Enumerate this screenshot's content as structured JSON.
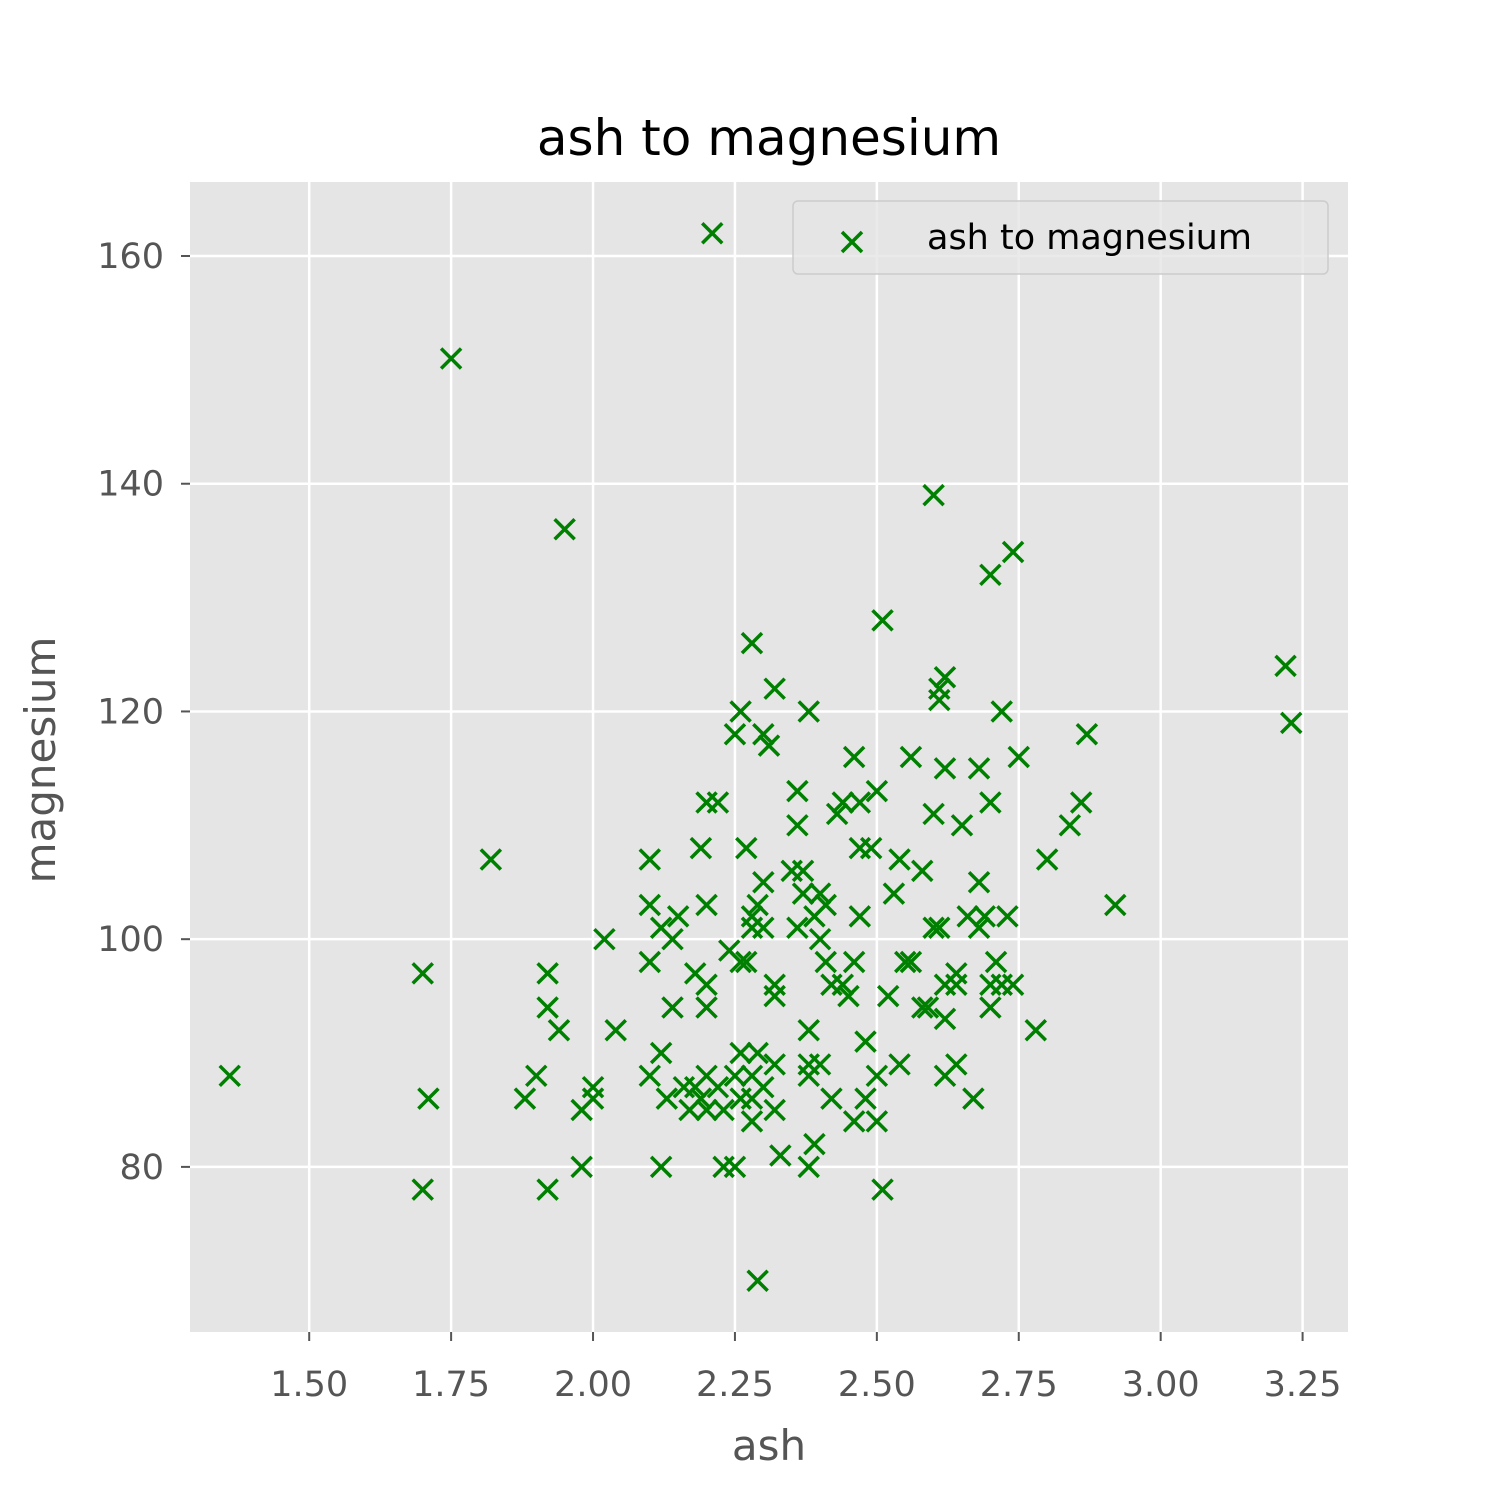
{
  "chart_data": {
    "type": "scatter",
    "title": "ash to magnesium",
    "xlabel": "ash",
    "ylabel": "magnesium",
    "xlim": [
      1.29,
      3.33
    ],
    "ylim": [
      65.5,
      166.5
    ],
    "x_ticks": [
      1.5,
      1.75,
      2.0,
      2.25,
      2.5,
      2.75,
      3.0,
      3.25
    ],
    "x_tick_labels": [
      "1.50",
      "1.75",
      "2.00",
      "2.25",
      "2.50",
      "2.75",
      "3.00",
      "3.25"
    ],
    "y_ticks": [
      80,
      100,
      120,
      140,
      160
    ],
    "y_tick_labels": [
      "80",
      "100",
      "120",
      "140",
      "160"
    ],
    "grid": true,
    "legend": {
      "position": "top-right",
      "entries": [
        "ash to magnesium"
      ]
    },
    "series": [
      {
        "name": "ash to magnesium",
        "color": "#008000",
        "marker": "x",
        "points": [
          [
            1.36,
            88
          ],
          [
            1.7,
            97
          ],
          [
            1.71,
            86
          ],
          [
            1.7,
            78
          ],
          [
            1.75,
            151
          ],
          [
            1.82,
            107
          ],
          [
            1.88,
            86
          ],
          [
            1.9,
            88
          ],
          [
            1.92,
            97
          ],
          [
            1.92,
            94
          ],
          [
            1.94,
            92
          ],
          [
            1.92,
            78
          ],
          [
            1.95,
            136
          ],
          [
            1.98,
            85
          ],
          [
            1.98,
            80
          ],
          [
            2.0,
            87
          ],
          [
            2.0,
            86
          ],
          [
            2.02,
            100
          ],
          [
            2.04,
            92
          ],
          [
            2.1,
            107
          ],
          [
            2.1,
            103
          ],
          [
            2.1,
            98
          ],
          [
            2.12,
            101
          ],
          [
            2.14,
            100
          ],
          [
            2.15,
            102
          ],
          [
            2.14,
            94
          ],
          [
            2.1,
            88
          ],
          [
            2.12,
            90
          ],
          [
            2.13,
            86
          ],
          [
            2.12,
            80
          ],
          [
            2.16,
            87
          ],
          [
            2.17,
            85
          ],
          [
            2.18,
            97
          ],
          [
            2.18,
            87
          ],
          [
            2.19,
            86
          ],
          [
            2.2,
            88
          ],
          [
            2.2,
            85
          ],
          [
            2.19,
            108
          ],
          [
            2.2,
            103
          ],
          [
            2.2,
            96
          ],
          [
            2.2,
            94
          ],
          [
            2.2,
            112
          ],
          [
            2.22,
            112
          ],
          [
            2.21,
            162
          ],
          [
            2.22,
            87
          ],
          [
            2.23,
            85
          ],
          [
            2.23,
            80
          ],
          [
            2.24,
            99
          ],
          [
            2.25,
            118
          ],
          [
            2.26,
            120
          ],
          [
            2.26,
            98
          ],
          [
            2.26,
            90
          ],
          [
            2.25,
            88
          ],
          [
            2.26,
            86
          ],
          [
            2.25,
            80
          ],
          [
            2.28,
            126
          ],
          [
            2.27,
            108
          ],
          [
            2.28,
            102
          ],
          [
            2.28,
            101
          ],
          [
            2.27,
            98
          ],
          [
            2.28,
            88
          ],
          [
            2.28,
            86
          ],
          [
            2.28,
            84
          ],
          [
            2.3,
            118
          ],
          [
            2.31,
            117
          ],
          [
            2.3,
            105
          ],
          [
            2.3,
            101
          ],
          [
            2.29,
            103
          ],
          [
            2.29,
            90
          ],
          [
            2.3,
            87
          ],
          [
            2.29,
            70
          ],
          [
            2.32,
            122
          ],
          [
            2.32,
            96
          ],
          [
            2.32,
            95
          ],
          [
            2.32,
            89
          ],
          [
            2.32,
            85
          ],
          [
            2.33,
            81
          ],
          [
            2.35,
            106
          ],
          [
            2.36,
            113
          ],
          [
            2.36,
            110
          ],
          [
            2.37,
            106
          ],
          [
            2.36,
            101
          ],
          [
            2.37,
            104
          ],
          [
            2.38,
            120
          ],
          [
            2.38,
            92
          ],
          [
            2.38,
            89
          ],
          [
            2.38,
            88
          ],
          [
            2.39,
            102
          ],
          [
            2.38,
            80
          ],
          [
            2.39,
            82
          ],
          [
            2.4,
            104
          ],
          [
            2.4,
            100
          ],
          [
            2.41,
            98
          ],
          [
            2.4,
            89
          ],
          [
            2.41,
            103
          ],
          [
            2.42,
            96
          ],
          [
            2.42,
            86
          ],
          [
            2.43,
            111
          ],
          [
            2.44,
            112
          ],
          [
            2.45,
            95
          ],
          [
            2.44,
            96
          ],
          [
            2.46,
            98
          ],
          [
            2.46,
            116
          ],
          [
            2.46,
            84
          ],
          [
            2.47,
            112
          ],
          [
            2.47,
            108
          ],
          [
            2.47,
            102
          ],
          [
            2.48,
            91
          ],
          [
            2.48,
            86
          ],
          [
            2.49,
            108
          ],
          [
            2.5,
            113
          ],
          [
            2.5,
            88
          ],
          [
            2.51,
            128
          ],
          [
            2.5,
            84
          ],
          [
            2.51,
            78
          ],
          [
            2.52,
            95
          ],
          [
            2.53,
            104
          ],
          [
            2.54,
            107
          ],
          [
            2.54,
            89
          ],
          [
            2.55,
            98
          ],
          [
            2.56,
            116
          ],
          [
            2.56,
            98
          ],
          [
            2.58,
            106
          ],
          [
            2.58,
            94
          ],
          [
            2.59,
            94
          ],
          [
            2.6,
            139
          ],
          [
            2.6,
            111
          ],
          [
            2.6,
            101
          ],
          [
            2.61,
            121
          ],
          [
            2.61,
            122
          ],
          [
            2.62,
            123
          ],
          [
            2.62,
            115
          ],
          [
            2.61,
            101
          ],
          [
            2.62,
            96
          ],
          [
            2.62,
            93
          ],
          [
            2.62,
            88
          ],
          [
            2.64,
            97
          ],
          [
            2.64,
            96
          ],
          [
            2.64,
            89
          ],
          [
            2.65,
            110
          ],
          [
            2.66,
            102
          ],
          [
            2.67,
            86
          ],
          [
            2.68,
            115
          ],
          [
            2.68,
            101
          ],
          [
            2.68,
            105
          ],
          [
            2.69,
            102
          ],
          [
            2.7,
            132
          ],
          [
            2.7,
            112
          ],
          [
            2.7,
            96
          ],
          [
            2.7,
            94
          ],
          [
            2.71,
            98
          ],
          [
            2.72,
            120
          ],
          [
            2.72,
            96
          ],
          [
            2.73,
            102
          ],
          [
            2.74,
            134
          ],
          [
            2.75,
            116
          ],
          [
            2.74,
            96
          ],
          [
            2.78,
            92
          ],
          [
            2.8,
            107
          ],
          [
            2.84,
            110
          ],
          [
            2.86,
            112
          ],
          [
            2.87,
            118
          ],
          [
            2.92,
            103
          ],
          [
            3.22,
            124
          ],
          [
            3.23,
            119
          ]
        ]
      }
    ]
  }
}
